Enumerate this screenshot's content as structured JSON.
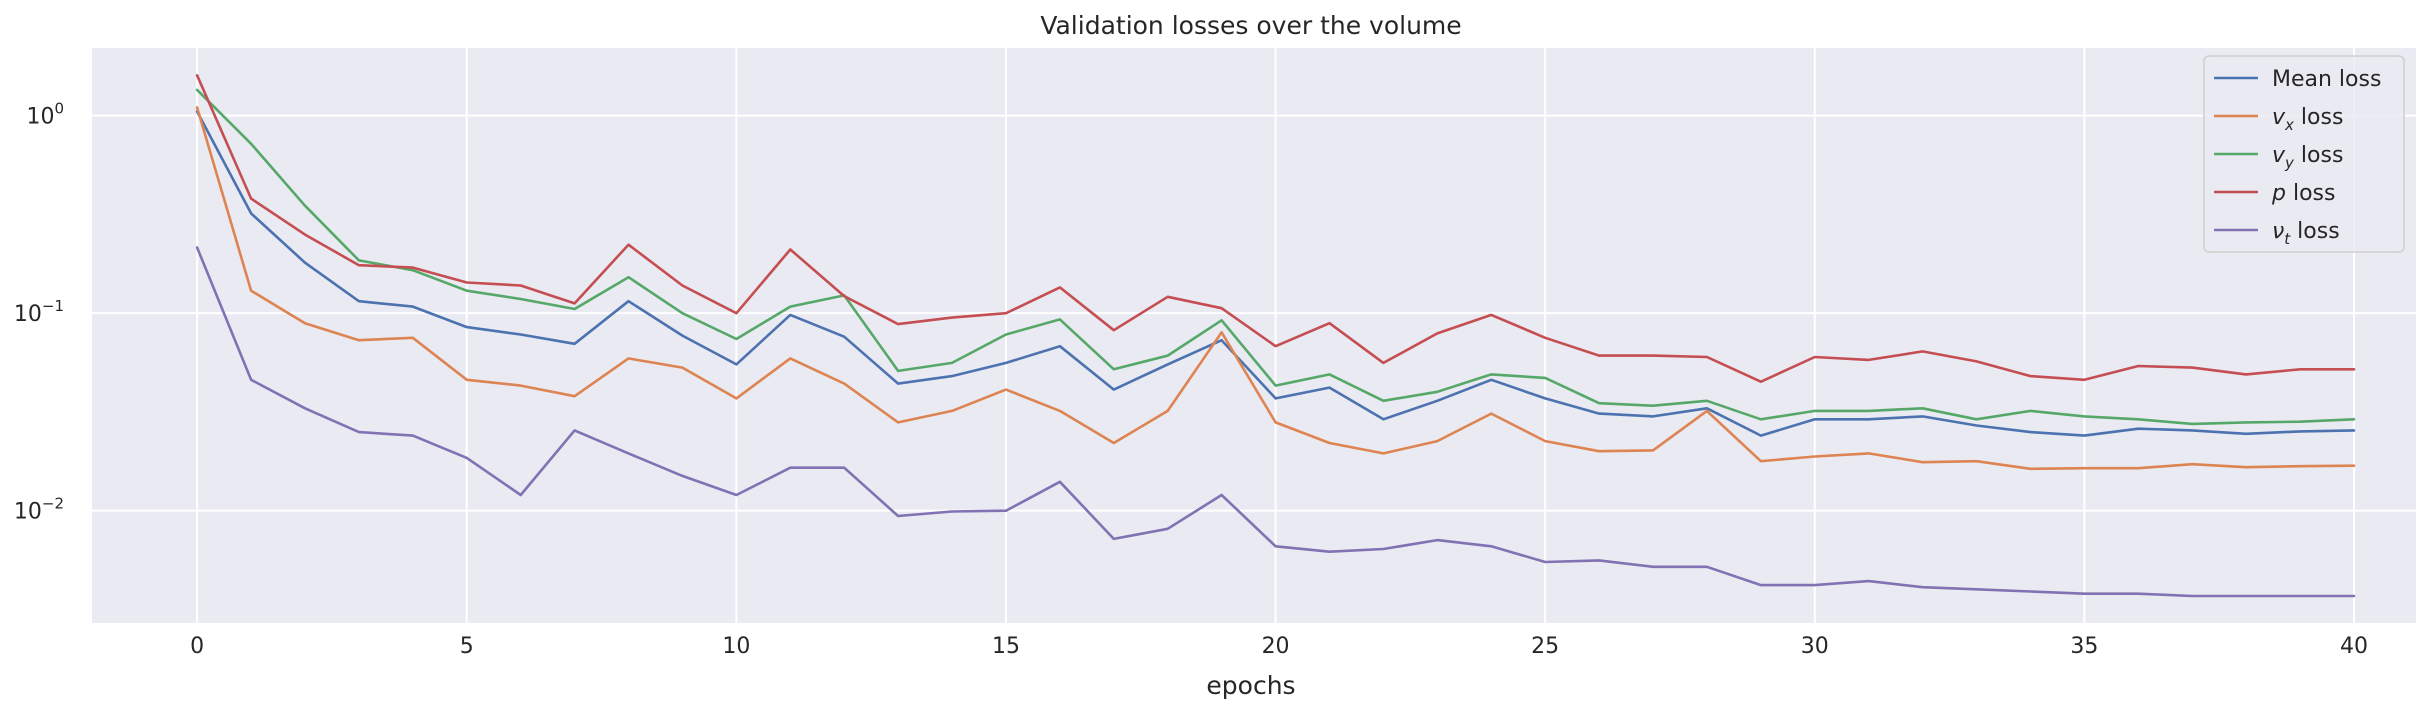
{
  "chart_data": {
    "type": "line",
    "title": "Validation losses over the volume",
    "xlabel": "epochs",
    "ylabel": "",
    "yscale": "log",
    "xlim": [
      -1.95,
      41.15
    ],
    "ylim": [
      0.0027,
      2.2
    ],
    "xticks": [
      0,
      5,
      10,
      15,
      20,
      25,
      30,
      35,
      40
    ],
    "yticks": [
      {
        "value": 0.01,
        "base": "10",
        "exp": "−2"
      },
      {
        "value": 0.1,
        "base": "10",
        "exp": "−1"
      },
      {
        "value": 1,
        "base": "10",
        "exp": "0"
      }
    ],
    "legend_position": "top-right",
    "x": [
      0,
      1,
      2,
      3,
      4,
      5,
      6,
      7,
      8,
      9,
      10,
      11,
      12,
      13,
      14,
      15,
      16,
      17,
      18,
      19,
      20,
      21,
      22,
      23,
      24,
      25,
      26,
      27,
      28,
      29,
      30,
      31,
      32,
      33,
      34,
      35,
      36,
      37,
      38,
      39,
      40
    ],
    "series": [
      {
        "name": "Mean loss",
        "label_main": "Mean loss",
        "label_sub": "",
        "label_rest": "",
        "color": "#4c72b0",
        "values": [
          1.05,
          0.32,
          0.18,
          0.115,
          0.108,
          0.085,
          0.078,
          0.07,
          0.115,
          0.077,
          0.055,
          0.098,
          0.076,
          0.044,
          0.048,
          0.056,
          0.068,
          0.041,
          0.055,
          0.073,
          0.037,
          0.042,
          0.029,
          0.036,
          0.046,
          0.037,
          0.031,
          0.03,
          0.033,
          0.024,
          0.029,
          0.029,
          0.03,
          0.027,
          0.025,
          0.024,
          0.026,
          0.0255,
          0.0245,
          0.0252,
          0.0255
        ]
      },
      {
        "name": "vx loss",
        "label_main": "v",
        "label_sub": "x",
        "label_rest": " loss",
        "color": "#dd8452",
        "values": [
          1.1,
          0.13,
          0.089,
          0.073,
          0.075,
          0.046,
          0.043,
          0.038,
          0.059,
          0.053,
          0.037,
          0.059,
          0.044,
          0.028,
          0.032,
          0.041,
          0.032,
          0.022,
          0.032,
          0.08,
          0.028,
          0.022,
          0.0195,
          0.0225,
          0.031,
          0.0225,
          0.02,
          0.0202,
          0.032,
          0.0178,
          0.0188,
          0.0195,
          0.0176,
          0.0178,
          0.0163,
          0.0164,
          0.0164,
          0.0172,
          0.0166,
          0.0168,
          0.0169
        ]
      },
      {
        "name": "vy loss",
        "label_main": "v",
        "label_sub": "y",
        "label_rest": " loss",
        "color": "#55a868",
        "values": [
          1.35,
          0.72,
          0.35,
          0.185,
          0.165,
          0.13,
          0.118,
          0.105,
          0.152,
          0.1,
          0.074,
          0.108,
          0.123,
          0.051,
          0.056,
          0.078,
          0.093,
          0.052,
          0.061,
          0.092,
          0.043,
          0.049,
          0.036,
          0.04,
          0.049,
          0.047,
          0.035,
          0.034,
          0.036,
          0.029,
          0.032,
          0.032,
          0.033,
          0.029,
          0.032,
          0.03,
          0.029,
          0.0275,
          0.028,
          0.0282,
          0.029
        ]
      },
      {
        "name": "p loss",
        "label_main": "p",
        "label_sub": "",
        "label_rest": " loss",
        "color": "#c44e52",
        "values": [
          1.6,
          0.38,
          0.25,
          0.175,
          0.17,
          0.143,
          0.138,
          0.112,
          0.222,
          0.138,
          0.1,
          0.21,
          0.122,
          0.088,
          0.095,
          0.1,
          0.135,
          0.082,
          0.121,
          0.106,
          0.068,
          0.089,
          0.056,
          0.079,
          0.098,
          0.075,
          0.061,
          0.061,
          0.06,
          0.045,
          0.06,
          0.058,
          0.064,
          0.057,
          0.048,
          0.046,
          0.054,
          0.053,
          0.049,
          0.052,
          0.052
        ]
      },
      {
        "name": "νt loss",
        "label_main": "ν",
        "label_sub": "t",
        "label_rest": " loss",
        "color": "#8172b3",
        "values": [
          0.215,
          0.046,
          0.033,
          0.025,
          0.024,
          0.0185,
          0.012,
          0.0255,
          0.0195,
          0.015,
          0.012,
          0.0165,
          0.0165,
          0.0094,
          0.0099,
          0.01,
          0.014,
          0.0072,
          0.0081,
          0.012,
          0.0066,
          0.0062,
          0.0064,
          0.0071,
          0.0066,
          0.0055,
          0.0056,
          0.0052,
          0.0052,
          0.0042,
          0.0042,
          0.0044,
          0.0041,
          0.004,
          0.0039,
          0.0038,
          0.0038,
          0.0037,
          0.0037,
          0.0037,
          0.0037
        ]
      }
    ]
  }
}
